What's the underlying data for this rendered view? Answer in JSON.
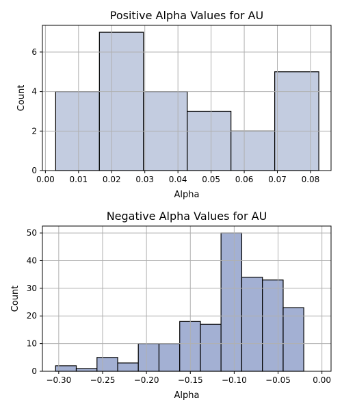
{
  "chart_data": [
    {
      "type": "bar",
      "title": "Positive Alpha Values for AU",
      "xlabel": "Alpha",
      "ylabel": "Count",
      "xlim": [
        -0.0009,
        0.0862
      ],
      "ylim": [
        0,
        7.35
      ],
      "xticks": [
        0.0,
        0.01,
        0.02,
        0.03,
        0.04,
        0.05,
        0.06,
        0.07,
        0.08
      ],
      "xtick_labels": [
        "0.00",
        "0.01",
        "0.02",
        "0.03",
        "0.04",
        "0.05",
        "0.06",
        "0.07",
        "0.08"
      ],
      "yticks": [
        0,
        2,
        4,
        6
      ],
      "ytick_labels": [
        "0",
        "2",
        "4",
        "6"
      ],
      "bin_edges": [
        0.0031,
        0.0163,
        0.0296,
        0.0428,
        0.056,
        0.0692,
        0.0825
      ],
      "values": [
        4,
        7,
        4,
        3,
        2,
        5
      ],
      "grid": true,
      "bar_color": "#c3cce0"
    },
    {
      "type": "bar",
      "title": "Negative Alpha Values for AU",
      "xlabel": "Alpha",
      "ylabel": "Count",
      "xlim": [
        -0.3186,
        0.0104
      ],
      "ylim": [
        0,
        52.5
      ],
      "xticks": [
        -0.3,
        -0.25,
        -0.2,
        -0.15,
        -0.1,
        -0.05,
        0.0
      ],
      "xtick_labels": [
        "−0.30",
        "−0.25",
        "−0.20",
        "−0.15",
        "−0.10",
        "−0.05",
        "0.00"
      ],
      "yticks": [
        0,
        10,
        20,
        30,
        40,
        50
      ],
      "ytick_labels": [
        "0",
        "10",
        "20",
        "30",
        "40",
        "50"
      ],
      "bin_edges": [
        -0.3036,
        -0.28,
        -0.2564,
        -0.2328,
        -0.2093,
        -0.1857,
        -0.1621,
        -0.1385,
        -0.115,
        -0.0914,
        -0.0678,
        -0.0442,
        -0.0207
      ],
      "values": [
        2,
        1,
        5,
        3,
        10,
        10,
        18,
        17,
        50,
        34,
        33,
        23
      ],
      "grid": true,
      "bar_color": "#a3b0d3"
    }
  ]
}
